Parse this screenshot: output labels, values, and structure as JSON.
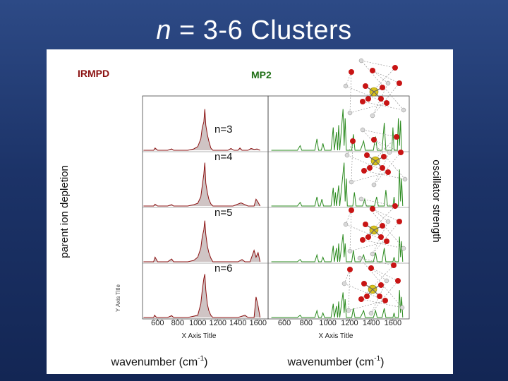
{
  "slide": {
    "title_var": "n",
    "title_rest": " = 3-6 Clusters"
  },
  "labels": {
    "irmpd": "IRMPD",
    "mp2": "MP2",
    "left_axis": "parent ion depletion",
    "right_axis": "oscillator strength",
    "x_title_left": "X Axis Title",
    "x_title_right": "X Axis Title",
    "y_title_stub": "Y Axis Title",
    "wavenumber_left_main": "wavenumber (cm",
    "wavenumber_left_sup": "-1",
    "wavenumber_left_end": ")",
    "wavenumber_right_main": "wavenumber (cm",
    "wavenumber_right_sup": "-1",
    "wavenumber_right_end": ")"
  },
  "colors": {
    "background": "#1c3368",
    "irmpd_line": "#8b1010",
    "irmpd_fill": "#cfc4c4",
    "mp2_line": "#2a8a1e",
    "label_red": "#8b1010",
    "label_green": "#1e6e14"
  },
  "chart_data": {
    "type": "line",
    "x_ticks_left": [
      "600",
      "800",
      "1000",
      "1200",
      "1400",
      "1600"
    ],
    "x_ticks_right": [
      "600",
      "800",
      "1000",
      "1200",
      "1400",
      "1600"
    ],
    "xlim_left": [
      450,
      1700
    ],
    "xlim_right": [
      450,
      1750
    ],
    "panels": [
      {
        "name": "n=3",
        "irmpd": [
          [
            460,
            0
          ],
          [
            560,
            0
          ],
          [
            575,
            0.05
          ],
          [
            600,
            0
          ],
          [
            700,
            0
          ],
          [
            740,
            0.03
          ],
          [
            760,
            0
          ],
          [
            900,
            0
          ],
          [
            960,
            0.03
          ],
          [
            1000,
            0.08
          ],
          [
            1030,
            0.25
          ],
          [
            1045,
            0.5
          ],
          [
            1060,
            0.62
          ],
          [
            1070,
            0.9
          ],
          [
            1080,
            0.55
          ],
          [
            1095,
            0.35
          ],
          [
            1110,
            0.2
          ],
          [
            1130,
            0.05
          ],
          [
            1150,
            0
          ],
          [
            1300,
            0
          ],
          [
            1330,
            0.04
          ],
          [
            1360,
            0
          ],
          [
            1400,
            0
          ],
          [
            1420,
            0.05
          ],
          [
            1440,
            0
          ],
          [
            1500,
            0
          ],
          [
            1530,
            0.04
          ],
          [
            1560,
            0.02
          ],
          [
            1590,
            0.03
          ],
          [
            1620,
            0
          ]
        ],
        "mp2": [
          [
            480,
            0
          ],
          [
            720,
            0
          ],
          [
            745,
            0.1
          ],
          [
            760,
            0
          ],
          [
            880,
            0
          ],
          [
            900,
            0.25
          ],
          [
            915,
            0
          ],
          [
            940,
            0
          ],
          [
            955,
            0.15
          ],
          [
            970,
            0
          ],
          [
            1030,
            0
          ],
          [
            1050,
            0.5
          ],
          [
            1060,
            0
          ],
          [
            1080,
            0.4
          ],
          [
            1090,
            0
          ],
          [
            1100,
            0.55
          ],
          [
            1110,
            0
          ],
          [
            1140,
            0.9
          ],
          [
            1150,
            0.1
          ],
          [
            1160,
            0.7
          ],
          [
            1170,
            0
          ],
          [
            1220,
            0
          ],
          [
            1235,
            0.35
          ],
          [
            1250,
            0
          ],
          [
            1300,
            0
          ],
          [
            1330,
            0.2
          ],
          [
            1345,
            0
          ],
          [
            1420,
            0
          ],
          [
            1440,
            0.3
          ],
          [
            1455,
            0
          ],
          [
            1500,
            0
          ],
          [
            1520,
            0.6
          ],
          [
            1535,
            0
          ],
          [
            1590,
            0
          ],
          [
            1600,
            0.5
          ],
          [
            1610,
            0
          ],
          [
            1640,
            0
          ],
          [
            1650,
            0.7
          ],
          [
            1660,
            0.1
          ],
          [
            1670,
            0.65
          ],
          [
            1680,
            0
          ]
        ]
      },
      {
        "name": "n=4",
        "irmpd": [
          [
            460,
            0
          ],
          [
            560,
            0
          ],
          [
            575,
            0.04
          ],
          [
            600,
            0
          ],
          [
            700,
            0
          ],
          [
            740,
            0.03
          ],
          [
            760,
            0
          ],
          [
            900,
            0
          ],
          [
            960,
            0.03
          ],
          [
            1000,
            0.06
          ],
          [
            1030,
            0.2
          ],
          [
            1045,
            0.45
          ],
          [
            1060,
            0.7
          ],
          [
            1070,
            0.95
          ],
          [
            1080,
            0.5
          ],
          [
            1095,
            0.3
          ],
          [
            1110,
            0.15
          ],
          [
            1130,
            0.05
          ],
          [
            1150,
            0
          ],
          [
            1350,
            0
          ],
          [
            1430,
            0.07
          ],
          [
            1460,
            0.04
          ],
          [
            1500,
            0
          ],
          [
            1560,
            0
          ],
          [
            1580,
            0.15
          ],
          [
            1600,
            0.08
          ],
          [
            1620,
            0
          ]
        ],
        "mp2": [
          [
            480,
            0
          ],
          [
            720,
            0
          ],
          [
            745,
            0.08
          ],
          [
            760,
            0
          ],
          [
            880,
            0
          ],
          [
            900,
            0.2
          ],
          [
            915,
            0
          ],
          [
            930,
            0
          ],
          [
            945,
            0.15
          ],
          [
            960,
            0
          ],
          [
            1030,
            0
          ],
          [
            1050,
            0.4
          ],
          [
            1060,
            0
          ],
          [
            1070,
            0.3
          ],
          [
            1080,
            0
          ],
          [
            1100,
            0.45
          ],
          [
            1110,
            0
          ],
          [
            1150,
            0.95
          ],
          [
            1160,
            0.1
          ],
          [
            1170,
            0.6
          ],
          [
            1180,
            0
          ],
          [
            1230,
            0
          ],
          [
            1245,
            0.3
          ],
          [
            1260,
            0
          ],
          [
            1320,
            0
          ],
          [
            1340,
            0.15
          ],
          [
            1355,
            0
          ],
          [
            1430,
            0
          ],
          [
            1450,
            0.2
          ],
          [
            1465,
            0
          ],
          [
            1520,
            0
          ],
          [
            1535,
            0.35
          ],
          [
            1550,
            0
          ],
          [
            1600,
            0
          ],
          [
            1610,
            0.2
          ],
          [
            1620,
            0
          ],
          [
            1650,
            0
          ],
          [
            1660,
            0.8
          ],
          [
            1670,
            0.1
          ],
          [
            1680,
            0.6
          ],
          [
            1690,
            0
          ]
        ]
      },
      {
        "name": "n=5",
        "irmpd": [
          [
            460,
            0
          ],
          [
            560,
            0
          ],
          [
            575,
            0.1
          ],
          [
            600,
            0
          ],
          [
            700,
            0
          ],
          [
            740,
            0.06
          ],
          [
            760,
            0
          ],
          [
            900,
            0
          ],
          [
            960,
            0.03
          ],
          [
            1000,
            0.1
          ],
          [
            1030,
            0.3
          ],
          [
            1045,
            0.55
          ],
          [
            1060,
            0.7
          ],
          [
            1070,
            0.9
          ],
          [
            1080,
            0.6
          ],
          [
            1095,
            0.35
          ],
          [
            1110,
            0.2
          ],
          [
            1130,
            0.08
          ],
          [
            1150,
            0
          ],
          [
            1400,
            0
          ],
          [
            1440,
            0.05
          ],
          [
            1470,
            0
          ],
          [
            1520,
            0
          ],
          [
            1560,
            0.25
          ],
          [
            1580,
            0.1
          ],
          [
            1600,
            0.2
          ],
          [
            1620,
            0
          ]
        ],
        "mp2": [
          [
            480,
            0
          ],
          [
            720,
            0
          ],
          [
            745,
            0.05
          ],
          [
            760,
            0
          ],
          [
            880,
            0
          ],
          [
            900,
            0.15
          ],
          [
            915,
            0
          ],
          [
            940,
            0
          ],
          [
            955,
            0.1
          ],
          [
            970,
            0
          ],
          [
            1030,
            0
          ],
          [
            1050,
            0.35
          ],
          [
            1060,
            0
          ],
          [
            1080,
            0.3
          ],
          [
            1090,
            0
          ],
          [
            1100,
            0.4
          ],
          [
            1110,
            0
          ],
          [
            1140,
            0.6
          ],
          [
            1150,
            0.1
          ],
          [
            1160,
            0.4
          ],
          [
            1170,
            0
          ],
          [
            1220,
            0
          ],
          [
            1235,
            0.25
          ],
          [
            1250,
            0
          ],
          [
            1300,
            0
          ],
          [
            1330,
            0.15
          ],
          [
            1345,
            0
          ],
          [
            1420,
            0
          ],
          [
            1440,
            0.2
          ],
          [
            1455,
            0
          ],
          [
            1500,
            0
          ],
          [
            1520,
            0.3
          ],
          [
            1535,
            0
          ],
          [
            1600,
            0
          ],
          [
            1610,
            0.1
          ],
          [
            1620,
            0
          ],
          [
            1650,
            0
          ],
          [
            1660,
            0.55
          ],
          [
            1670,
            0.1
          ],
          [
            1680,
            0.45
          ],
          [
            1690,
            0
          ]
        ]
      },
      {
        "name": "n=6",
        "irmpd": [
          [
            460,
            0
          ],
          [
            560,
            0
          ],
          [
            570,
            0.05
          ],
          [
            590,
            0
          ],
          [
            700,
            0
          ],
          [
            740,
            0.04
          ],
          [
            760,
            0
          ],
          [
            900,
            0
          ],
          [
            960,
            0.03
          ],
          [
            1000,
            0.05
          ],
          [
            1030,
            0.3
          ],
          [
            1045,
            0.6
          ],
          [
            1060,
            0.85
          ],
          [
            1070,
            0.95
          ],
          [
            1080,
            0.6
          ],
          [
            1095,
            0.3
          ],
          [
            1110,
            0.15
          ],
          [
            1130,
            0.05
          ],
          [
            1150,
            0
          ],
          [
            1400,
            0
          ],
          [
            1470,
            0.05
          ],
          [
            1500,
            0
          ],
          [
            1560,
            0
          ],
          [
            1580,
            0.45
          ],
          [
            1600,
            0.25
          ],
          [
            1620,
            0
          ]
        ],
        "mp2": [
          [
            480,
            0
          ],
          [
            720,
            0
          ],
          [
            745,
            0.05
          ],
          [
            760,
            0
          ],
          [
            880,
            0
          ],
          [
            900,
            0.15
          ],
          [
            915,
            0
          ],
          [
            940,
            0
          ],
          [
            955,
            0.1
          ],
          [
            970,
            0
          ],
          [
            1030,
            0
          ],
          [
            1050,
            0.3
          ],
          [
            1060,
            0
          ],
          [
            1080,
            0.25
          ],
          [
            1090,
            0
          ],
          [
            1100,
            0.35
          ],
          [
            1110,
            0
          ],
          [
            1140,
            0.55
          ],
          [
            1150,
            0.1
          ],
          [
            1160,
            0.4
          ],
          [
            1170,
            0
          ],
          [
            1220,
            0
          ],
          [
            1235,
            0.2
          ],
          [
            1250,
            0
          ],
          [
            1300,
            0
          ],
          [
            1330,
            0.15
          ],
          [
            1345,
            0
          ],
          [
            1420,
            0
          ],
          [
            1440,
            0.15
          ],
          [
            1455,
            0
          ],
          [
            1500,
            0
          ],
          [
            1520,
            0.2
          ],
          [
            1535,
            0
          ],
          [
            1600,
            0
          ],
          [
            1610,
            0.1
          ],
          [
            1620,
            0
          ],
          [
            1650,
            0
          ],
          [
            1660,
            0.6
          ],
          [
            1670,
            0.1
          ],
          [
            1680,
            0.45
          ],
          [
            1690,
            0
          ]
        ]
      }
    ]
  }
}
